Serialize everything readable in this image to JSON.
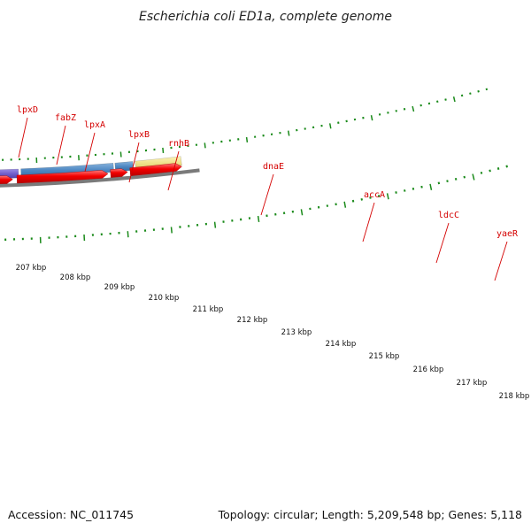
{
  "title": "Escherichia coli ED1a, complete genome",
  "footer": {
    "accession": "Accession: NC_011745",
    "stats": "Topology: circular; Length: 5,209,548 bp; Genes: 5,118"
  },
  "colors": {
    "background": "#ffffff",
    "label_red": "#d40000",
    "tick_green": "#1a8a1a",
    "backbone_gray": "#7a7a7a",
    "cds_red": "#ee0000"
  },
  "gene_labels": [
    {
      "name": "lpxD"
    },
    {
      "name": "fabZ"
    },
    {
      "name": "lpxA"
    },
    {
      "name": "lpxB"
    },
    {
      "name": "rnhB"
    },
    {
      "name": "dnaE"
    },
    {
      "name": "accA"
    },
    {
      "name": "ldcC"
    },
    {
      "name": "yaeR"
    }
  ],
  "kbp_labels": [
    "207 kbp",
    "208 kbp",
    "209 kbp",
    "210 kbp",
    "211 kbp",
    "212 kbp",
    "213 kbp",
    "214 kbp",
    "215 kbp",
    "216 kbp",
    "217 kbp",
    "218 kbp"
  ]
}
